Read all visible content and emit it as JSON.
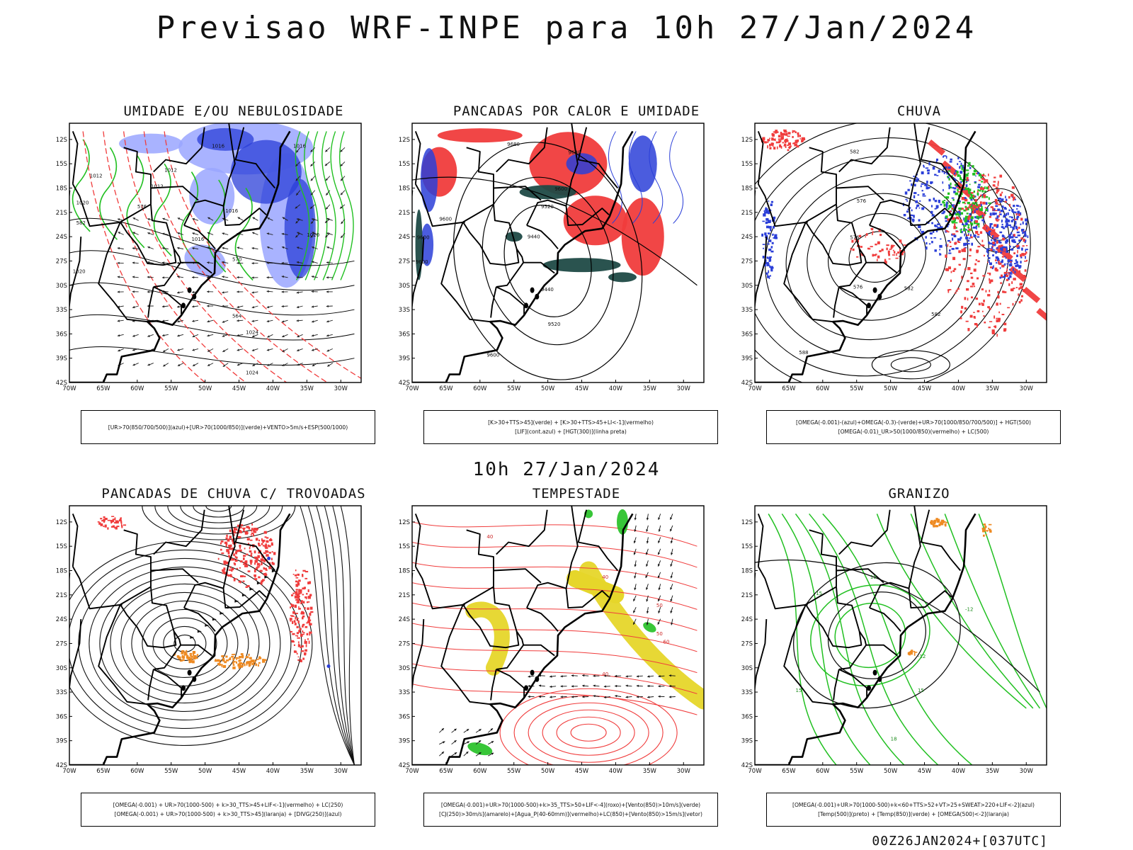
{
  "header": {
    "title": "Previsao WRF-INPE  para 10h 27/Jan/2024",
    "mid_date": "10h 27/Jan/2024",
    "run_label": "00Z26JAN2024+[037UTC]"
  },
  "axes": {
    "lat_labels": [
      "12S",
      "15S",
      "18S",
      "21S",
      "24S",
      "27S",
      "30S",
      "33S",
      "36S",
      "39S",
      "42S"
    ],
    "lon_labels": [
      "70W",
      "65W",
      "60W",
      "55W",
      "50W",
      "45W",
      "40W",
      "35W",
      "30W"
    ]
  },
  "colors": {
    "blue": "#2b3fd8",
    "green": "#22c022",
    "red": "#f03c3c",
    "dark_teal": "#1f4a46",
    "yellow": "#e6d62a",
    "orange": "#ee8a22",
    "lavender": "#9aa6ff"
  },
  "panels": [
    {
      "id": "umidade",
      "title": "UMIDADE E/OU NEBULOSIDADE",
      "caption_lines": [
        "[UR>70(850/700/500)](azul)+[UR>70(1000/850)](verde)+VENTO>5m/s+ESP(500/1000)"
      ],
      "contour_labels": [
        "1016",
        "1012",
        "1012",
        "1012",
        "1020",
        "1020",
        "1016",
        "1016",
        "1016",
        "1020",
        "1024",
        "1024",
        "576",
        "570",
        "582",
        "564"
      ]
    },
    {
      "id": "pancadas_calor",
      "title": "PANCADAS POR CALOR E UMIDADE",
      "caption_lines": [
        "[K>30+TTS>45](verde) + [K>30+TTS>45+LI<-1](vermelho)",
        "[LIF](cont.azul) + [HGT(300)](linha preta)"
      ],
      "contour_labels": [
        "9680",
        "9680",
        "9600",
        "9600",
        "9520",
        "9440",
        "9440",
        "9520",
        "9600",
        "9600",
        "9600"
      ]
    },
    {
      "id": "chuva",
      "title": "CHUVA",
      "caption_lines": [
        "[OMEGA(-0.001)-(azul)+OMEGA(-0.3)-(verde)+UR>70(1000/850/700/500)] + HGT(500)",
        "[OMEGA(-0.01)_UR>50(1000/850)(vermelho) + LC(500)"
      ],
      "contour_labels": [
        "582",
        "576",
        "576",
        "576",
        "582",
        "582",
        "588"
      ]
    },
    {
      "id": "trovoadas",
      "title": "PANCADAS DE CHUVA C/ TROVOADAS",
      "caption_lines": [
        "[OMEGA(-0.001) + UR>70(1000-500) + k>30_TTS>45+LIF<-1](vermelho) + LC(250)",
        "[OMEGA(-0.001) + UR>70(1000-500) + k>30_TTS>45](laranja) + [DIVG(250)](azul)"
      ],
      "contour_labels": []
    },
    {
      "id": "tempestade",
      "title": "TEMPESTADE",
      "caption_lines": [
        "[OMEGA(-0.001)+UR>70(1000-500)+k>35_TTS>50+LIF<-4](roxo)+[Vento(850)>10m/s](verde)",
        "[CJ(250)>30m/s](amarelo)+[Agua_P(40-60mm)](vermelho)+LC(850)+[Vento(850)>15m/s](vetor)"
      ],
      "contour_labels": [
        "40",
        "40",
        "50",
        "50",
        "60",
        "40"
      ]
    },
    {
      "id": "granizo",
      "title": "GRANIZO",
      "caption_lines": [
        "[OMEGA(-0.001)+UR>70(1000-500)+k<60+TTS>52+VT>25+SWEAT>220+LIF<-2](azul)",
        "[Temp(500)](preto) + [Temp(850)](verde) + [OMEGA(500)<-2](laranja)"
      ],
      "contour_labels": [
        "-12",
        "-12",
        "15",
        "15",
        "15",
        "15",
        "18"
      ]
    }
  ]
}
